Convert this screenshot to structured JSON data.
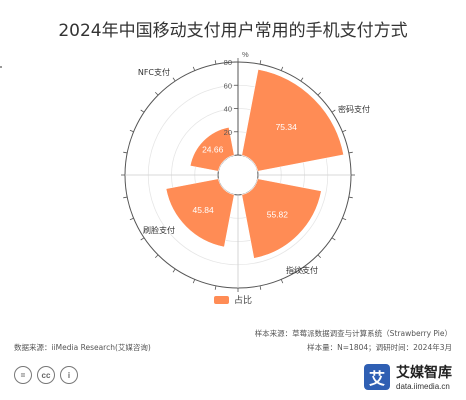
{
  "title": "2024年中国移动支付用户常用的手机支付方式",
  "chart_data": {
    "type": "polar-bar",
    "categories": [
      "密码支付",
      "指纹支付",
      "刷脸支付",
      "NFC支付"
    ],
    "series": [
      {
        "name": "占比",
        "values": [
          75.34,
          55.82,
          45.84,
          24.66
        ]
      }
    ],
    "radial_axis": {
      "unit": "%",
      "ticks": [
        20,
        40,
        60,
        80
      ],
      "range": [
        0,
        80
      ]
    },
    "legend": "bottom",
    "color": "#ff8c55"
  },
  "footer": {
    "source": "数据来源：iiMedia Research(艾媒咨询)",
    "sample_source": "样本来源：草莓派数据调查与计算系统（Strawberry Pie）",
    "sample_info": "样本量：N=1804；调研时间：2024年3月"
  },
  "brand": {
    "logo_char": "艾",
    "name": "艾媒智库",
    "url": "data.iimedia.cn"
  },
  "cc": [
    "=",
    "cc",
    "i"
  ]
}
